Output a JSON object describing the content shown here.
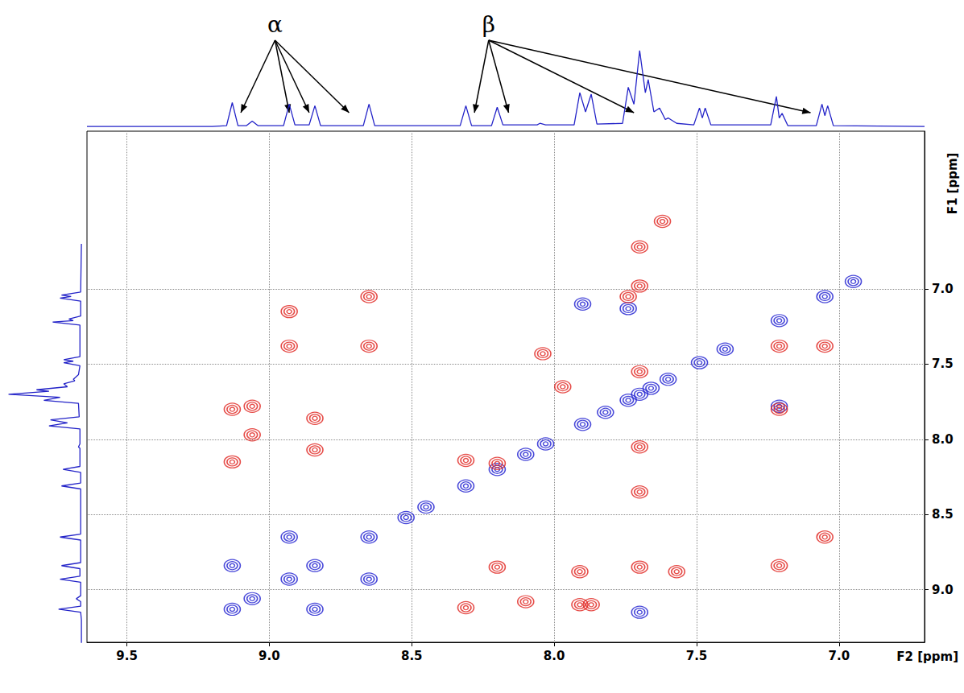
{
  "chart_data": {
    "type": "scatter",
    "x_label": "F2 [ppm]",
    "y_label": "F1 [ppm]",
    "xlim": [
      9.64,
      6.7
    ],
    "xticks": [
      9.5,
      {
        "value": 9,
        "label": "9.0"
      },
      8.5,
      {
        "value": 8,
        "label": "8.0"
      },
      7.5,
      {
        "value": 7,
        "label": "7.0"
      }
    ],
    "ylim": [
      9.35,
      5.95
    ],
    "yticks": [
      {
        "value": 7,
        "label": "7.0"
      },
      7.5,
      {
        "value": 8,
        "label": "8.0"
      },
      8.5,
      {
        "value": 9,
        "label": "9.0"
      }
    ],
    "grid": true,
    "series": [
      {
        "color": "#1c1cd0",
        "marker": "ellipse",
        "x": [
          9.13,
          9.06,
          8.93,
          8.84,
          8.65,
          8.52,
          8.45,
          8.31,
          8.2,
          8.1,
          8.03,
          7.9,
          7.82,
          7.74,
          7.7,
          7.66,
          7.6,
          7.49,
          7.4,
          7.21,
          7.05,
          6.95,
          9.13,
          8.84,
          8.93,
          8.65,
          7.9,
          7.74,
          7.21,
          7.7
        ],
        "values": [
          9.13,
          9.06,
          8.93,
          8.84,
          8.65,
          8.52,
          8.45,
          8.31,
          8.2,
          8.1,
          8.03,
          7.9,
          7.82,
          7.74,
          7.7,
          7.66,
          7.6,
          7.49,
          7.4,
          7.21,
          7.05,
          6.95,
          8.84,
          9.13,
          8.65,
          8.93,
          7.1,
          7.13,
          7.78,
          9.15
        ]
      },
      {
        "color": "#e0201c",
        "marker": "ellipse",
        "x": [
          8.65,
          8.93,
          8.93,
          8.65,
          9.13,
          9.06,
          8.84,
          8.84,
          9.13,
          9.06,
          8.31,
          8.2,
          8.04,
          7.97,
          7.91,
          7.87,
          8.31,
          8.1,
          8.2,
          7.91,
          7.21,
          7.05,
          7.05,
          7.21,
          7.21,
          7.74,
          7.7,
          7.7,
          7.62,
          7.7,
          7.7,
          7.7,
          7.7,
          7.57
        ],
        "values": [
          7.05,
          7.15,
          7.38,
          7.38,
          7.8,
          7.78,
          7.86,
          8.07,
          8.15,
          7.97,
          8.14,
          8.16,
          7.43,
          7.65,
          9.1,
          9.1,
          9.12,
          9.08,
          8.85,
          8.88,
          8.84,
          8.65,
          7.38,
          7.38,
          7.8,
          7.05,
          6.98,
          6.72,
          6.55,
          7.55,
          8.05,
          8.35,
          8.85,
          8.88
        ]
      }
    ],
    "projection": {
      "color": "#2323c8",
      "ylim": [
        0,
        1.05
      ],
      "x": [
        9.64,
        9.2,
        9.15,
        9.13,
        9.11,
        9.08,
        9.06,
        9.04,
        8.95,
        8.93,
        8.91,
        8.86,
        8.84,
        8.82,
        8.67,
        8.65,
        8.63,
        8.33,
        8.31,
        8.29,
        8.22,
        8.2,
        8.18,
        8.06,
        8.05,
        8.03,
        7.93,
        7.91,
        7.89,
        7.87,
        7.85,
        7.76,
        7.74,
        7.72,
        7.7,
        7.68,
        7.67,
        7.65,
        7.63,
        7.61,
        7.6,
        7.57,
        7.51,
        7.49,
        7.48,
        7.47,
        7.45,
        7.24,
        7.22,
        7.21,
        7.2,
        7.18,
        7.08,
        7.06,
        7.05,
        7.04,
        7.02,
        6.7
      ],
      "values": [
        0.01,
        0.01,
        0.02,
        0.32,
        0.02,
        0.02,
        0.08,
        0.02,
        0.02,
        0.3,
        0.03,
        0.03,
        0.28,
        0.02,
        0.02,
        0.3,
        0.02,
        0.02,
        0.28,
        0.02,
        0.02,
        0.26,
        0.03,
        0.03,
        0.05,
        0.03,
        0.03,
        0.45,
        0.2,
        0.43,
        0.04,
        0.05,
        0.52,
        0.3,
        1.0,
        0.45,
        0.62,
        0.2,
        0.25,
        0.1,
        0.12,
        0.05,
        0.03,
        0.25,
        0.12,
        0.25,
        0.03,
        0.03,
        0.4,
        0.12,
        0.18,
        0.02,
        0.02,
        0.3,
        0.15,
        0.28,
        0.02,
        0.01
      ]
    },
    "annotations": [
      {
        "text": "α",
        "x": 8.98,
        "targets": [
          9.1,
          8.93,
          8.86,
          8.72
        ]
      },
      {
        "text": "β",
        "x": 8.23,
        "targets": [
          8.28,
          8.16,
          7.72,
          7.1
        ]
      }
    ]
  }
}
